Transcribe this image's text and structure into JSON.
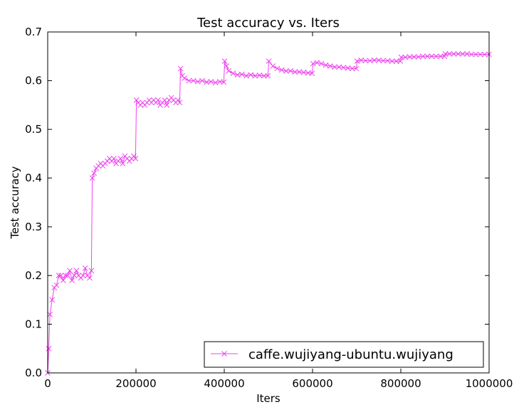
{
  "chart_data": {
    "type": "line",
    "title": "Test accuracy  vs. Iters",
    "xlabel": "Iters",
    "ylabel": "Test accuracy",
    "xlim": [
      0,
      1000000
    ],
    "ylim": [
      0.0,
      0.7
    ],
    "xticks": [
      0,
      200000,
      400000,
      600000,
      800000,
      1000000
    ],
    "xtick_labels": [
      "0",
      "200000",
      "400000",
      "600000",
      "800000",
      "1000000"
    ],
    "yticks": [
      0.0,
      0.1,
      0.2,
      0.3,
      0.4,
      0.5,
      0.6,
      0.7
    ],
    "ytick_labels": [
      "0.0",
      "0.1",
      "0.2",
      "0.3",
      "0.4",
      "0.5",
      "0.6",
      "0.7"
    ],
    "grid": false,
    "legend_position": "lower-right",
    "series": [
      {
        "name": "caffe.wujiyang-ubuntu.wujiyang",
        "color": "#ee44ee",
        "marker": "x",
        "x": [
          0,
          2500,
          5000,
          10000,
          15000,
          20000,
          25000,
          30000,
          35000,
          40000,
          45000,
          50000,
          55000,
          60000,
          65000,
          70000,
          75000,
          80000,
          85000,
          90000,
          95000,
          99000,
          101000,
          105000,
          110000,
          115000,
          120000,
          125000,
          130000,
          135000,
          140000,
          145000,
          150000,
          155000,
          160000,
          165000,
          170000,
          175000,
          180000,
          185000,
          190000,
          195000,
          199000,
          201000,
          205000,
          210000,
          215000,
          220000,
          225000,
          230000,
          235000,
          240000,
          245000,
          250000,
          255000,
          260000,
          265000,
          270000,
          275000,
          280000,
          285000,
          290000,
          295000,
          299000,
          301000,
          305000,
          310000,
          320000,
          330000,
          340000,
          350000,
          360000,
          370000,
          380000,
          390000,
          399000,
          401000,
          405000,
          410000,
          420000,
          430000,
          440000,
          450000,
          460000,
          470000,
          480000,
          490000,
          499000,
          501000,
          510000,
          520000,
          530000,
          540000,
          550000,
          560000,
          570000,
          580000,
          590000,
          599000,
          601000,
          610000,
          620000,
          630000,
          640000,
          650000,
          660000,
          670000,
          680000,
          690000,
          699000,
          701000,
          710000,
          720000,
          730000,
          740000,
          750000,
          760000,
          770000,
          780000,
          790000,
          799000,
          801000,
          810000,
          820000,
          830000,
          840000,
          850000,
          860000,
          870000,
          880000,
          890000,
          899000,
          901000,
          910000,
          920000,
          930000,
          940000,
          950000,
          960000,
          970000,
          980000,
          990000,
          1000000
        ],
        "y": [
          0.0,
          0.05,
          0.12,
          0.15,
          0.175,
          0.18,
          0.2,
          0.2,
          0.19,
          0.2,
          0.2,
          0.21,
          0.19,
          0.2,
          0.21,
          0.2,
          0.195,
          0.2,
          0.215,
          0.2,
          0.195,
          0.21,
          0.4,
          0.41,
          0.42,
          0.425,
          0.43,
          0.425,
          0.43,
          0.435,
          0.44,
          0.435,
          0.44,
          0.43,
          0.435,
          0.44,
          0.43,
          0.445,
          0.44,
          0.435,
          0.44,
          0.445,
          0.44,
          0.56,
          0.555,
          0.55,
          0.555,
          0.55,
          0.555,
          0.56,
          0.555,
          0.56,
          0.555,
          0.56,
          0.55,
          0.555,
          0.56,
          0.55,
          0.56,
          0.565,
          0.56,
          0.555,
          0.56,
          0.555,
          0.625,
          0.61,
          0.605,
          0.6,
          0.6,
          0.598,
          0.6,
          0.597,
          0.598,
          0.596,
          0.598,
          0.597,
          0.64,
          0.63,
          0.62,
          0.615,
          0.612,
          0.613,
          0.61,
          0.612,
          0.61,
          0.611,
          0.61,
          0.61,
          0.64,
          0.63,
          0.625,
          0.622,
          0.62,
          0.62,
          0.618,
          0.618,
          0.617,
          0.616,
          0.615,
          0.635,
          0.637,
          0.635,
          0.632,
          0.63,
          0.628,
          0.628,
          0.627,
          0.626,
          0.625,
          0.625,
          0.64,
          0.642,
          0.641,
          0.641,
          0.642,
          0.642,
          0.641,
          0.641,
          0.64,
          0.64,
          0.64,
          0.648,
          0.648,
          0.649,
          0.649,
          0.649,
          0.65,
          0.65,
          0.65,
          0.65,
          0.65,
          0.65,
          0.655,
          0.655,
          0.655,
          0.655,
          0.655,
          0.655,
          0.654,
          0.654,
          0.654,
          0.654,
          0.654
        ]
      }
    ]
  }
}
